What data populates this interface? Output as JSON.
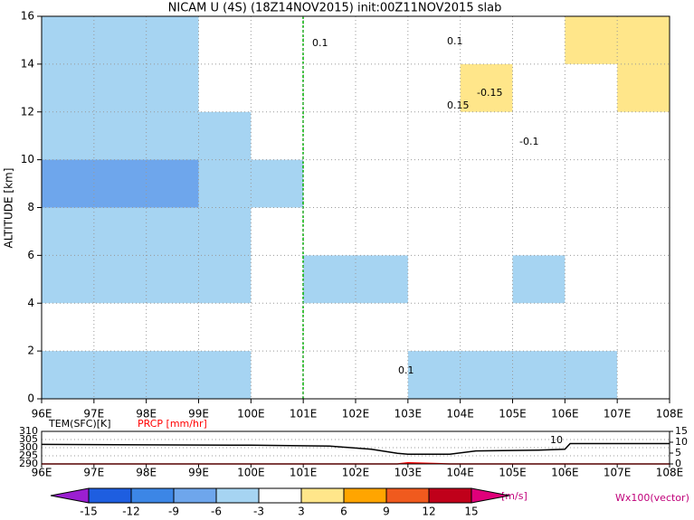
{
  "chart_data": [
    {
      "type": "heatmap",
      "title": "NICAM U (4S) (18Z14NOV2015) init:00Z11NOV2015 slab",
      "ylabel": "ALTITUDE [km]",
      "x": [
        96.5,
        97.5,
        98.5,
        99.5,
        100.5,
        101.5,
        102.5,
        103.5,
        104.5,
        105.5,
        106.5,
        107.5
      ],
      "y": [
        15,
        13,
        11,
        9,
        7,
        5,
        3,
        1
      ],
      "z": [
        [
          -4,
          -5,
          -4,
          -3,
          -2,
          -1,
          -2,
          -1,
          -1,
          0,
          4,
          5
        ],
        [
          -5,
          -6,
          -4,
          -3,
          -3,
          -2,
          -2,
          -1,
          3,
          1,
          2,
          5
        ],
        [
          -6,
          -5,
          -5,
          -4,
          -3,
          -3,
          -2,
          -1,
          -1,
          0,
          0,
          1
        ],
        [
          -8,
          -7,
          -7,
          -6,
          -4,
          -3,
          -2,
          -1,
          -1,
          0,
          0,
          -1
        ],
        [
          -5,
          -5,
          -4,
          -4,
          -3,
          -3,
          -3,
          -2,
          -1,
          -3,
          -2,
          -3
        ],
        [
          -6,
          -5,
          -4,
          -4,
          -3,
          -5,
          -4,
          -3,
          -3,
          -4,
          -3,
          -3
        ],
        [
          -3,
          -3,
          -3,
          -3,
          -3,
          -2,
          -2,
          -1,
          -1,
          -1,
          -2,
          -2
        ],
        [
          -5,
          -5,
          -5,
          -4,
          -3,
          -2,
          -2,
          -5,
          -5,
          -4,
          -4,
          -2
        ]
      ],
      "xlim": [
        96,
        108
      ],
      "xticks": [
        {
          "value": 96,
          "label": "96E"
        },
        {
          "value": 97,
          "label": "97E"
        },
        {
          "value": 98,
          "label": "98E"
        },
        {
          "value": 99,
          "label": "99E"
        },
        {
          "value": 100,
          "label": "100E"
        },
        {
          "value": 101,
          "label": "101E"
        },
        {
          "value": 102,
          "label": "102E"
        },
        {
          "value": 103,
          "label": "103E"
        },
        {
          "value": 104,
          "label": "104E"
        },
        {
          "value": 105,
          "label": "105E"
        },
        {
          "value": 106,
          "label": "106E"
        },
        {
          "value": 107,
          "label": "107E"
        },
        {
          "value": 108,
          "label": "108E"
        }
      ],
      "ylim": [
        0,
        16
      ],
      "yticks": [
        0,
        2,
        4,
        6,
        8,
        10,
        12,
        14,
        16
      ],
      "grid": true,
      "annotations": [
        "0.1",
        "0.1",
        "-0.15",
        "0.15",
        "-0.1",
        "0.1"
      ],
      "vector_label": "Wx100(vector)"
    },
    {
      "type": "line",
      "x": [
        96,
        100,
        101.5,
        102.3,
        102.8,
        103,
        103.8,
        104.3,
        105.5,
        106,
        106.1,
        108
      ],
      "series": [
        {
          "name": "TEM(SFC)[K]",
          "color": "#000000",
          "values": [
            302,
            301.5,
            301,
            299,
            296.5,
            296,
            296,
            298,
            298.5,
            299,
            302.5,
            302.5
          ]
        },
        {
          "name": "PRCP [mm/hr]",
          "color": "#ff0000",
          "axis": "y2",
          "values": [
            0,
            0,
            0,
            0,
            0,
            0.5,
            0,
            0,
            0,
            0,
            0,
            0
          ]
        }
      ],
      "xlim": [
        96,
        108
      ],
      "xticks": [
        {
          "value": 96,
          "label": "96E"
        },
        {
          "value": 97,
          "label": "97E"
        },
        {
          "value": 98,
          "label": "98E"
        },
        {
          "value": 99,
          "label": "99E"
        },
        {
          "value": 100,
          "label": "100E"
        },
        {
          "value": 101,
          "label": "101E"
        },
        {
          "value": 102,
          "label": "102E"
        },
        {
          "value": 103,
          "label": "103E"
        },
        {
          "value": 104,
          "label": "104E"
        },
        {
          "value": 105,
          "label": "105E"
        },
        {
          "value": 106,
          "label": "106E"
        },
        {
          "value": 107,
          "label": "107E"
        },
        {
          "value": 108,
          "label": "108E"
        }
      ],
      "ylim": [
        290,
        310
      ],
      "yticks": [
        290,
        295,
        300,
        305,
        310
      ],
      "y2lim": [
        0,
        15
      ],
      "y2ticks": [
        0,
        5,
        10,
        15
      ],
      "annotation": "10"
    },
    {
      "type": "colorbar",
      "levels": [
        -15,
        -12,
        -9,
        -6,
        -3,
        3,
        6,
        9,
        12,
        15
      ],
      "colors": [
        "#9b1fd1",
        "#1e5ee0",
        "#3c86e6",
        "#6ea6ec",
        "#a6d4f2",
        "#ffffff",
        "#ffe68a",
        "#ffa500",
        "#f05a1e",
        "#c0001a",
        "#e0007a"
      ],
      "unit": "[m/s]"
    }
  ]
}
